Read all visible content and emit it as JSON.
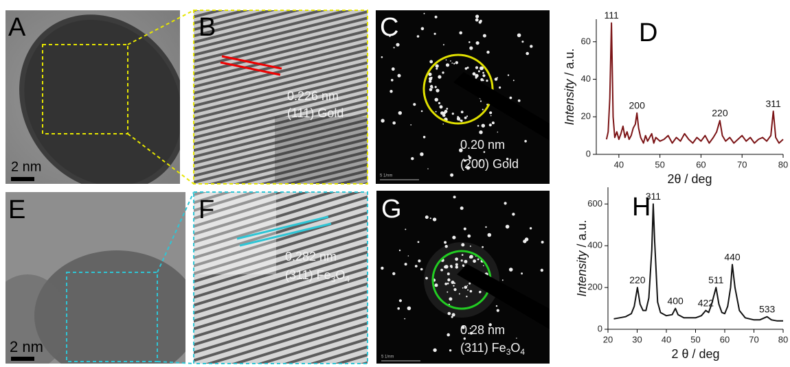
{
  "panels": {
    "A": {
      "label": "A",
      "scale": "2 nm"
    },
    "B": {
      "label": "B",
      "spacing": "0.226 nm",
      "plane": "(111) Gold"
    },
    "C": {
      "label": "C",
      "spacing": "0.20 nm",
      "plane": "(200) Gold",
      "scale": "5 1/nm"
    },
    "E": {
      "label": "E",
      "scale": "2 nm"
    },
    "F": {
      "label": "F",
      "spacing": "0.282 nm",
      "plane_parts": [
        "(311) Fe",
        "3",
        "O",
        "4"
      ]
    },
    "G": {
      "label": "G",
      "spacing": "0.28 nm",
      "plane_parts": [
        "(311) Fe",
        "3",
        "O",
        "4"
      ],
      "scale": "5 1/nm"
    }
  },
  "chart_data": [
    {
      "type": "line",
      "panel_label": "D",
      "x_label": "2θ / deg",
      "y_label": [
        "Intensity",
        " / a.u."
      ],
      "color": "#7b1416",
      "xlim": [
        34.5,
        80
      ],
      "xticks": [
        40,
        50,
        60,
        70,
        80
      ],
      "ylim": [
        0,
        72
      ],
      "yticks": [
        0,
        20,
        40,
        60
      ],
      "x": [
        37,
        37.4,
        37.8,
        38.2,
        38.6,
        39,
        39.5,
        40,
        40.5,
        41,
        41.5,
        42,
        42.5,
        43,
        43.5,
        44,
        44.4,
        44.8,
        45.3,
        46,
        46.5,
        47,
        47.5,
        48,
        48.5,
        49,
        50,
        51,
        52,
        53,
        54,
        55,
        56,
        57,
        58,
        59,
        60,
        61,
        62,
        63,
        63.8,
        64.6,
        65.2,
        66,
        67,
        68,
        69,
        70,
        71,
        72,
        73,
        74,
        75,
        76,
        77,
        77.6,
        78.2,
        79,
        80
      ],
      "values": [
        8,
        12,
        30,
        70,
        20,
        9,
        12,
        8,
        11,
        15,
        9,
        12,
        8,
        10,
        14,
        16,
        22,
        14,
        9,
        6,
        10,
        7,
        9,
        11,
        6,
        9,
        7,
        8,
        10,
        6,
        9,
        7,
        11,
        8,
        6,
        9,
        7,
        10,
        6,
        9,
        12,
        18,
        10,
        7,
        9,
        6,
        8,
        10,
        7,
        9,
        6,
        8,
        9,
        7,
        10,
        23,
        9,
        6,
        8
      ],
      "annotations": [
        {
          "text": "111",
          "x": 38.2
        },
        {
          "text": "200",
          "x": 44.4
        },
        {
          "text": "220",
          "x": 64.6
        },
        {
          "text": "311",
          "x": 77.6
        }
      ]
    },
    {
      "type": "line",
      "panel_label": "H",
      "x_label": "2 θ / deg",
      "y_label": [
        "Intensity",
        " / a.u."
      ],
      "color": "#111111",
      "xlim": [
        20,
        80
      ],
      "xticks": [
        20,
        30,
        40,
        50,
        60,
        70,
        80
      ],
      "ylim": [
        0,
        680
      ],
      "yticks": [
        0,
        200,
        400,
        600
      ],
      "x": [
        22,
        24,
        26,
        28,
        29,
        30.1,
        31,
        32,
        33,
        34,
        35,
        35.5,
        36,
        37,
        38,
        40,
        42,
        43.1,
        44,
        46,
        48,
        50,
        52,
        53.5,
        54.5,
        55.5,
        57,
        58,
        59,
        60,
        61,
        62,
        62.6,
        63.5,
        65,
        67,
        70,
        72,
        74.5,
        76,
        78,
        80
      ],
      "values": [
        50,
        55,
        60,
        75,
        110,
        200,
        120,
        90,
        90,
        150,
        380,
        600,
        420,
        130,
        80,
        65,
        70,
        100,
        70,
        55,
        55,
        55,
        65,
        90,
        80,
        120,
        200,
        120,
        80,
        75,
        110,
        200,
        310,
        200,
        90,
        55,
        45,
        45,
        60,
        45,
        40,
        40
      ],
      "annotations": [
        {
          "text": "220",
          "x": 30.1
        },
        {
          "text": "311",
          "x": 35.5
        },
        {
          "text": "400",
          "x": 43.1
        },
        {
          "text": "422",
          "x": 53.5
        },
        {
          "text": "511",
          "x": 57
        },
        {
          "text": "440",
          "x": 62.6
        },
        {
          "text": "533",
          "x": 74.5
        }
      ]
    }
  ]
}
